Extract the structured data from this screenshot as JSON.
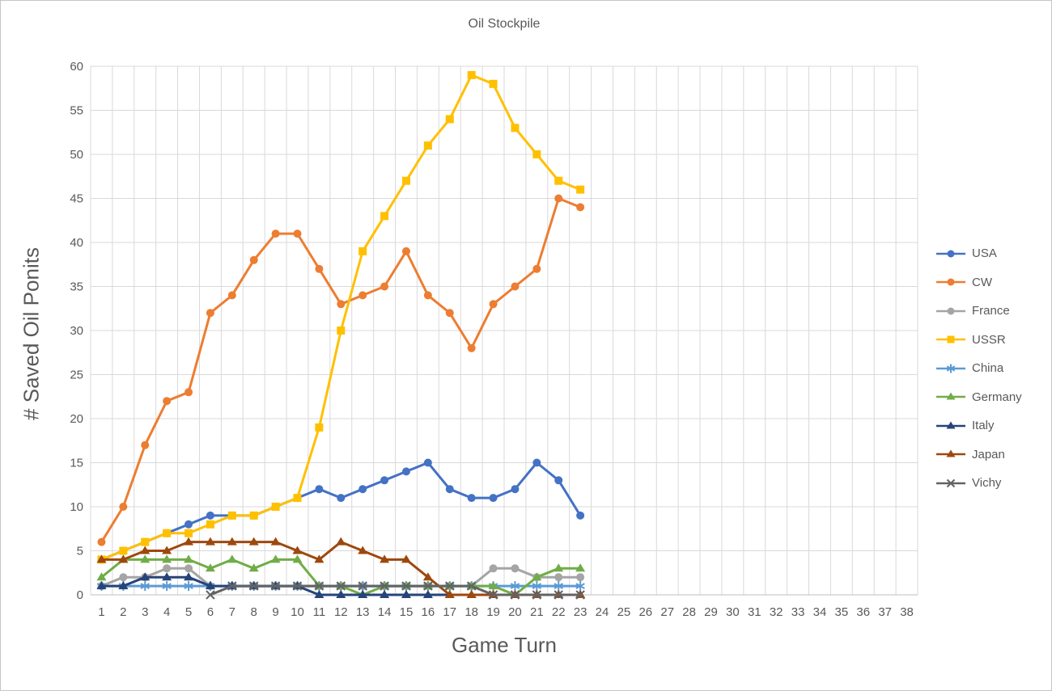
{
  "chart_data": {
    "type": "line",
    "title": "Oil Stockpile",
    "xlabel": "Game Turn",
    "ylabel": "# Saved Oil Ponits",
    "x_min": 1,
    "x_max": 38,
    "ylim": [
      0,
      60
    ],
    "y_step": 5,
    "grid": true,
    "legend_position": "right",
    "axis_color": "#595959",
    "grid_color": "#D9D9D9",
    "axis_line_color": "#BFBFBF",
    "x": [
      1,
      2,
      3,
      4,
      5,
      6,
      7,
      8,
      9,
      10,
      11,
      12,
      13,
      14,
      15,
      16,
      17,
      18,
      19,
      20,
      21,
      22,
      23
    ],
    "series": [
      {
        "name": "USA",
        "color": "#4472C4",
        "marker": "circle",
        "values": [
          4,
          5,
          6,
          7,
          8,
          9,
          9,
          9,
          10,
          11,
          12,
          11,
          12,
          13,
          14,
          15,
          12,
          11,
          11,
          12,
          15,
          13,
          9
        ]
      },
      {
        "name": "CW",
        "color": "#ED7D31",
        "marker": "circle",
        "values": [
          6,
          10,
          17,
          22,
          23,
          32,
          34,
          38,
          41,
          41,
          37,
          33,
          34,
          35,
          39,
          34,
          32,
          28,
          33,
          35,
          37,
          45,
          44
        ]
      },
      {
        "name": "France",
        "color": "#A5A5A5",
        "marker": "circle",
        "values": [
          1,
          2,
          2,
          3,
          3,
          1,
          1,
          1,
          1,
          1,
          1,
          1,
          1,
          1,
          1,
          1,
          1,
          1,
          3,
          3,
          2,
          2,
          2
        ]
      },
      {
        "name": "USSR",
        "color": "#FFC000",
        "marker": "square",
        "values": [
          4,
          5,
          6,
          7,
          7,
          8,
          9,
          9,
          10,
          11,
          19,
          30,
          39,
          43,
          47,
          51,
          54,
          59,
          58,
          53,
          50,
          47,
          46
        ]
      },
      {
        "name": "China",
        "color": "#5B9BD5",
        "marker": "asterisk",
        "values": [
          1,
          1,
          1,
          1,
          1,
          1,
          1,
          1,
          1,
          1,
          1,
          1,
          1,
          1,
          1,
          1,
          1,
          1,
          1,
          1,
          1,
          1,
          1
        ]
      },
      {
        "name": "Germany",
        "color": "#70AD47",
        "marker": "triangle",
        "values": [
          2,
          4,
          4,
          4,
          4,
          3,
          4,
          3,
          4,
          4,
          1,
          1,
          0,
          1,
          1,
          1,
          1,
          1,
          1,
          0,
          2,
          3,
          3
        ]
      },
      {
        "name": "Italy",
        "color": "#264478",
        "marker": "triangle",
        "values": [
          1,
          1,
          2,
          2,
          2,
          1,
          1,
          1,
          1,
          1,
          0,
          0,
          0,
          0,
          0,
          0,
          0,
          0,
          0,
          0,
          0,
          0,
          0
        ]
      },
      {
        "name": "Japan",
        "color": "#9E480E",
        "marker": "triangle",
        "values": [
          4,
          4,
          5,
          5,
          6,
          6,
          6,
          6,
          6,
          5,
          4,
          6,
          5,
          4,
          4,
          2,
          0,
          0,
          0,
          0,
          0,
          0,
          0
        ]
      },
      {
        "name": "Vichy",
        "color": "#636363",
        "marker": "x",
        "values": [
          null,
          null,
          null,
          null,
          null,
          0,
          1,
          1,
          1,
          1,
          1,
          1,
          1,
          1,
          1,
          1,
          1,
          1,
          0,
          0,
          0,
          0,
          0
        ]
      }
    ]
  }
}
